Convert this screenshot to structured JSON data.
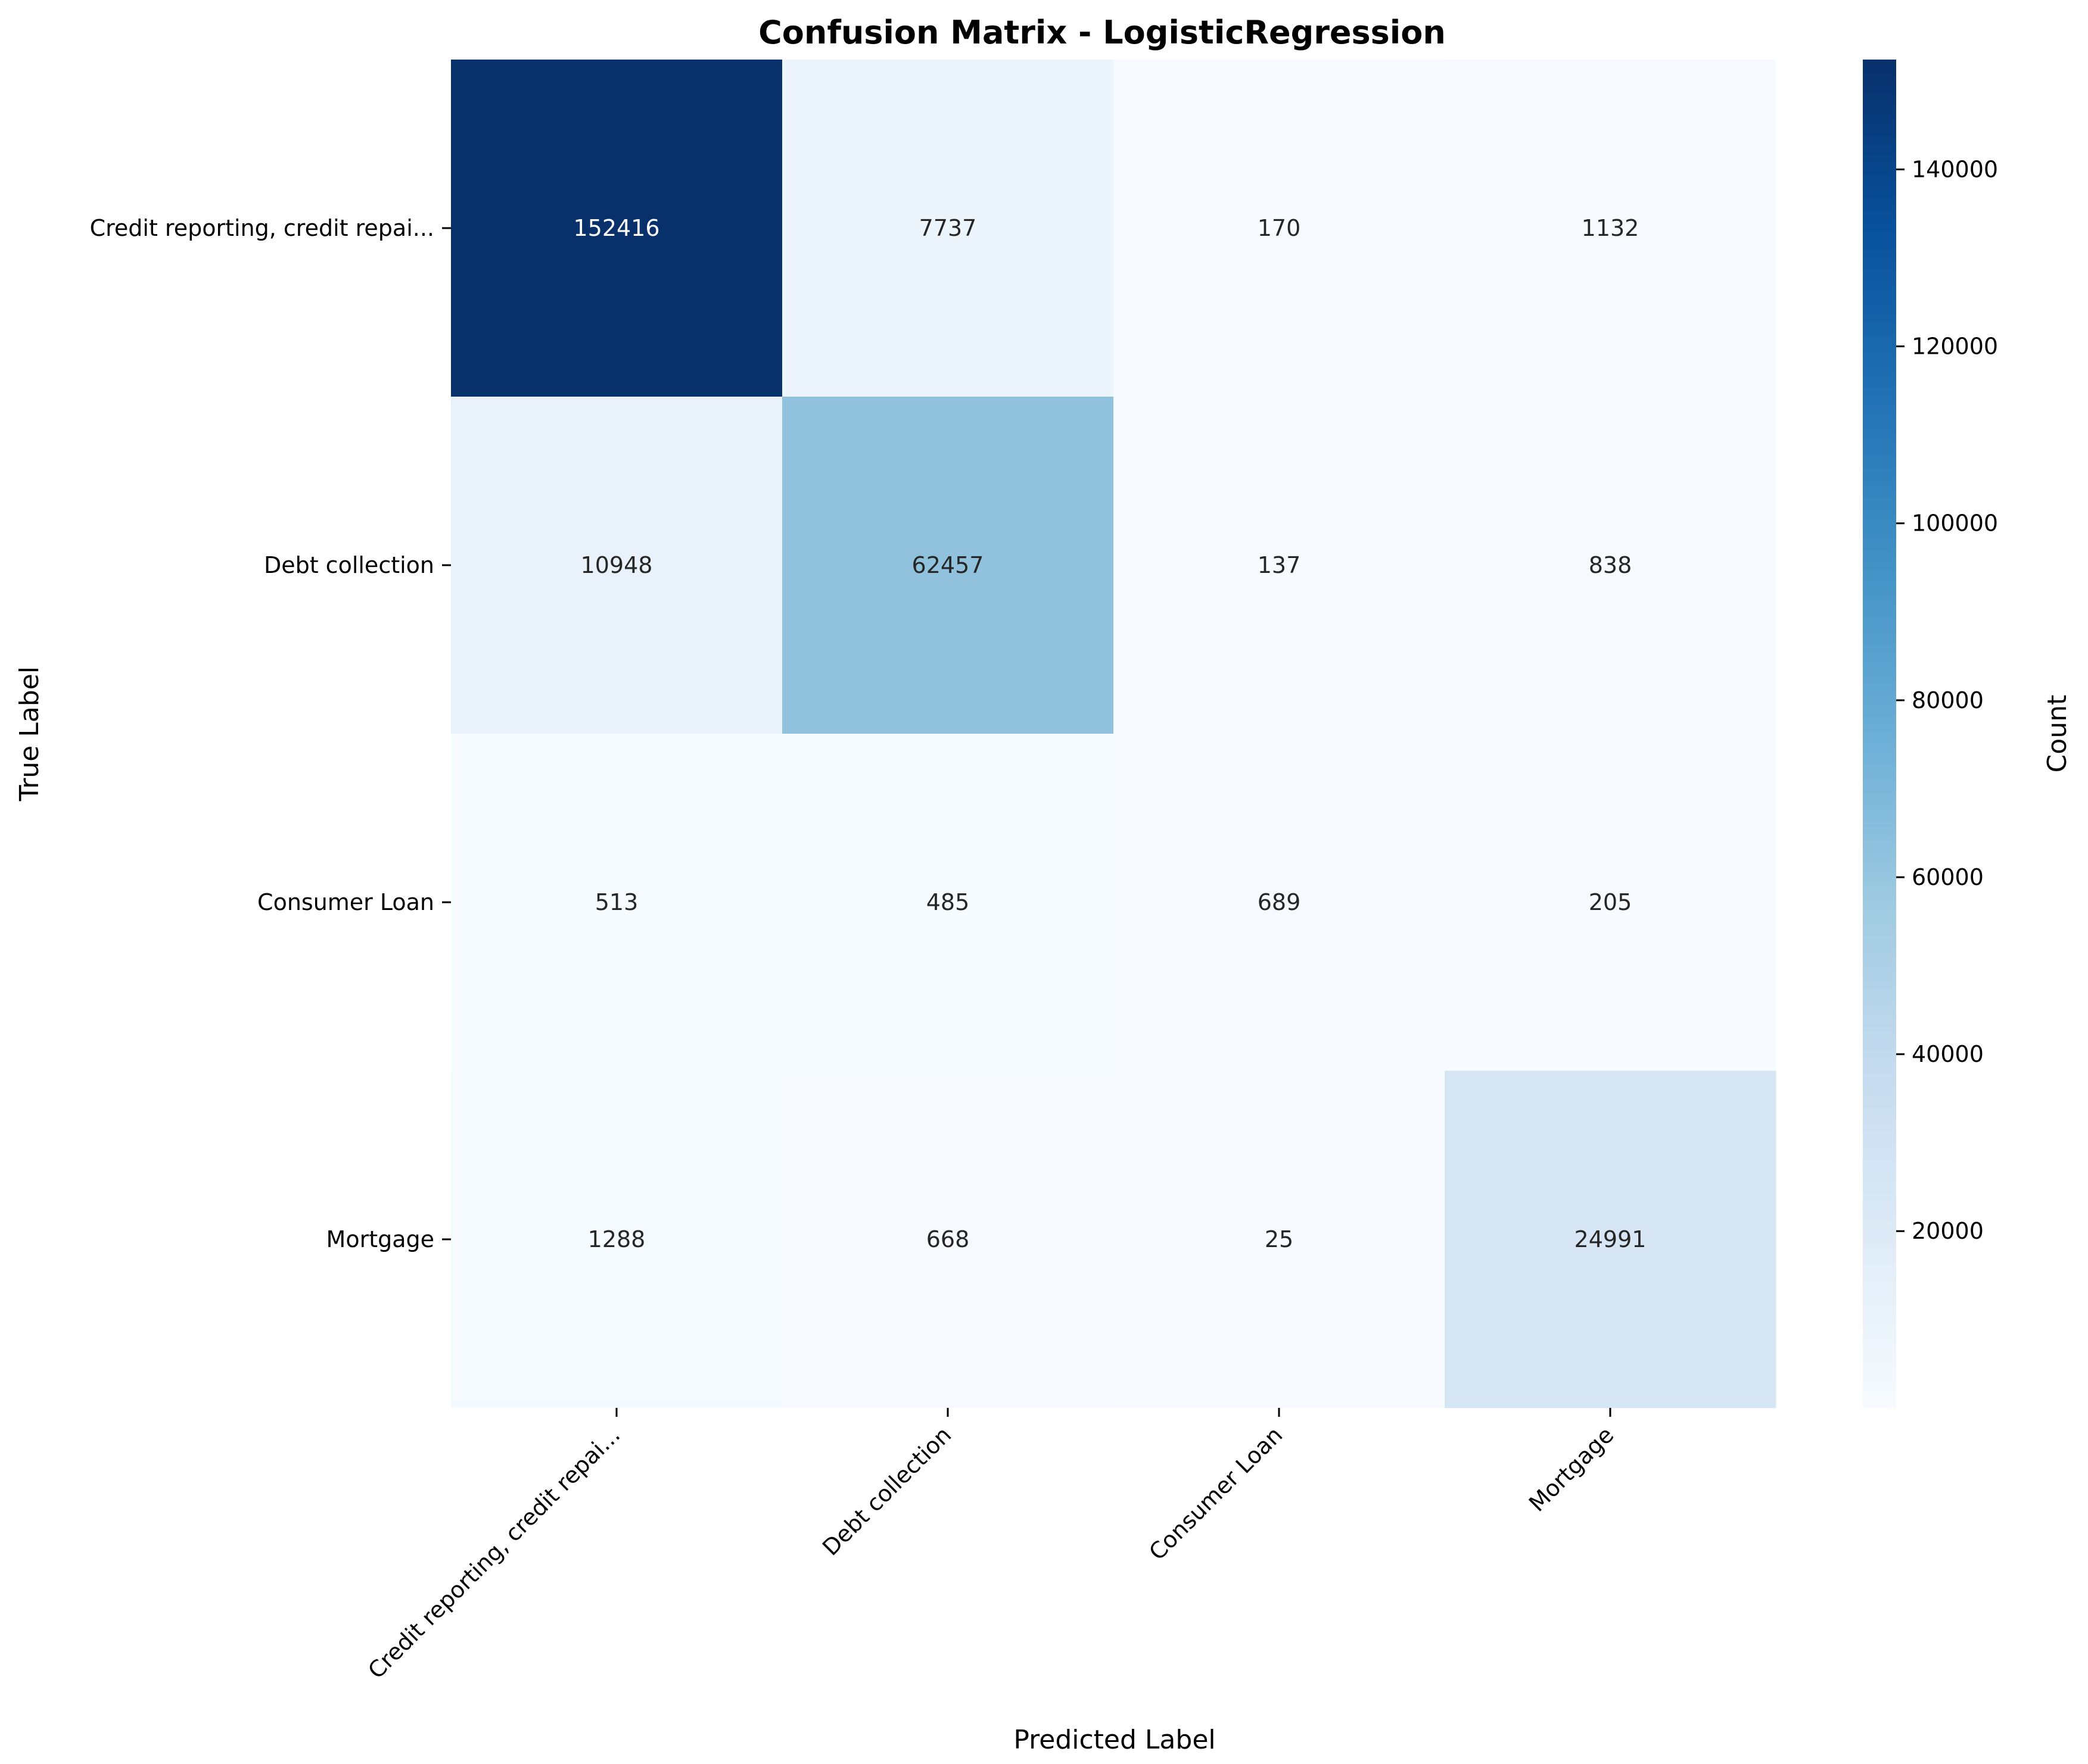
{
  "chart_data": {
    "type": "heatmap",
    "title": "Confusion Matrix - LogisticRegression",
    "xlabel": "Predicted Label",
    "ylabel": "True Label",
    "row_labels": [
      "Credit reporting, credit repai...",
      "Debt collection",
      "Consumer Loan",
      "Mortgage"
    ],
    "col_labels": [
      "Credit reporting, credit repai...",
      "Debt collection",
      "Consumer Loan",
      "Mortgage"
    ],
    "values": [
      [
        152416,
        7737,
        170,
        1132
      ],
      [
        10948,
        62457,
        137,
        838
      ],
      [
        513,
        485,
        689,
        205
      ],
      [
        1288,
        668,
        25,
        24991
      ]
    ],
    "colormap": "Blues",
    "colorbar": {
      "label": "Count",
      "range": [
        25,
        152416
      ],
      "ticks": [
        20000,
        40000,
        60000,
        80000,
        100000,
        120000,
        140000
      ]
    },
    "annotation_colors": {
      "light_text": "#ffffff",
      "dark_text": "#262626"
    }
  }
}
